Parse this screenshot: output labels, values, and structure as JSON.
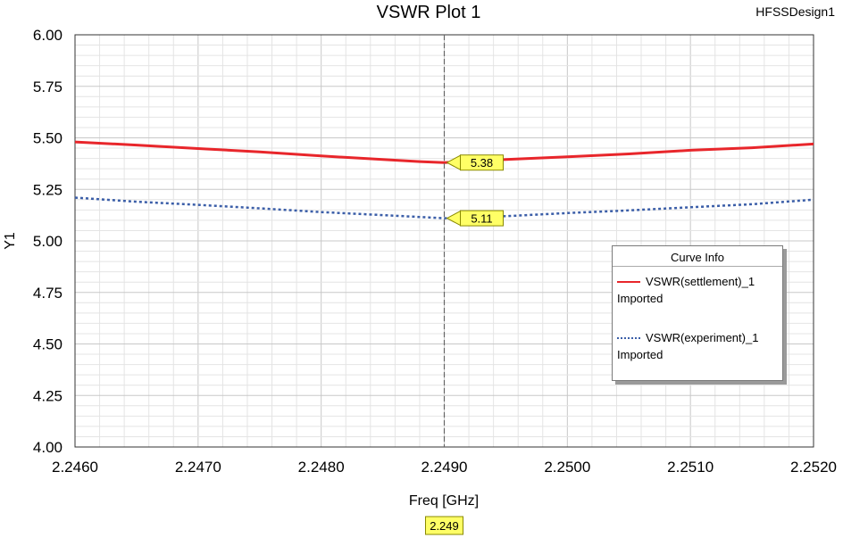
{
  "window": {
    "design_name": "HFSSDesign1"
  },
  "chart_data": {
    "type": "line",
    "title": "VSWR Plot 1",
    "xlabel": "Freq [GHz]",
    "ylabel": "Y1",
    "xlim": [
      2.246,
      2.252
    ],
    "ylim": [
      4.0,
      6.0
    ],
    "xticks": [
      2.246,
      2.247,
      2.248,
      2.249,
      2.25,
      2.251,
      2.252
    ],
    "xtick_labels": [
      "2.2460",
      "2.2470",
      "2.2480",
      "2.2490",
      "2.2500",
      "2.2510",
      "2.2520"
    ],
    "yticks": [
      4.0,
      4.25,
      4.5,
      4.75,
      5.0,
      5.25,
      5.5,
      5.75,
      6.0
    ],
    "ytick_labels": [
      "4.00",
      "4.25",
      "4.50",
      "4.75",
      "5.00",
      "5.25",
      "5.50",
      "5.75",
      "6.00"
    ],
    "grid": true,
    "series": [
      {
        "name": "VSWR(settlement)_1",
        "subtitle": "Imported",
        "color": "#e8262b",
        "style": "solid",
        "x": [
          2.246,
          2.2465,
          2.247,
          2.2475,
          2.248,
          2.2485,
          2.2488,
          2.249,
          2.2495,
          2.25,
          2.2505,
          2.251,
          2.2515,
          2.252
        ],
        "y": [
          5.48,
          5.465,
          5.448,
          5.432,
          5.412,
          5.395,
          5.385,
          5.38,
          5.395,
          5.408,
          5.422,
          5.44,
          5.452,
          5.47
        ]
      },
      {
        "name": "VSWR(experiment)_1",
        "subtitle": "Imported",
        "color": "#3b5ea8",
        "style": "dotted",
        "x": [
          2.246,
          2.2465,
          2.247,
          2.2475,
          2.248,
          2.2485,
          2.249,
          2.2495,
          2.25,
          2.2505,
          2.251,
          2.2515,
          2.252
        ],
        "y": [
          5.21,
          5.19,
          5.175,
          5.158,
          5.14,
          5.125,
          5.11,
          5.12,
          5.135,
          5.148,
          5.163,
          5.178,
          5.2
        ]
      }
    ],
    "marker": {
      "x": 2.249,
      "x_label": "2.249",
      "values": [
        {
          "series": 0,
          "y": 5.38,
          "label": "5.38"
        },
        {
          "series": 1,
          "y": 5.11,
          "label": "5.11"
        }
      ]
    },
    "legend": {
      "title": "Curve Info",
      "position": "right"
    }
  }
}
